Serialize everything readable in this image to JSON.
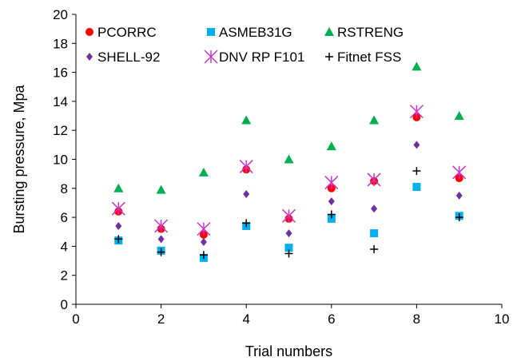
{
  "chart_data": {
    "type": "scatter",
    "xlabel": "Trial numbers",
    "ylabel": "Bursting pressure, Mpa",
    "xlim": [
      0,
      10
    ],
    "ylim": [
      0,
      20
    ],
    "xticks": [
      "0",
      "2",
      "4",
      "6",
      "8",
      "10"
    ],
    "yticks": [
      "0",
      "2",
      "4",
      "6",
      "8",
      "10",
      "12",
      "14",
      "16",
      "18",
      "20"
    ],
    "grid": false,
    "legend_position": "top (inside plot area)",
    "series": [
      {
        "name": "PCORRC",
        "marker": "circle",
        "color": "#ff0000",
        "x": [
          1,
          2,
          3,
          4,
          5,
          6,
          7,
          8,
          9
        ],
        "y": [
          6.4,
          5.2,
          4.8,
          9.3,
          5.9,
          8.0,
          8.5,
          12.9,
          8.7
        ]
      },
      {
        "name": "ASMEB31G",
        "marker": "square",
        "color": "#00b0f0",
        "x": [
          1,
          2,
          3,
          4,
          5,
          6,
          7,
          8,
          9
        ],
        "y": [
          4.4,
          3.7,
          3.2,
          5.4,
          3.9,
          5.9,
          4.9,
          8.1,
          6.1
        ]
      },
      {
        "name": "RSTRENG",
        "marker": "triangle",
        "color": "#00b050",
        "x": [
          1,
          2,
          3,
          4,
          5,
          6,
          7,
          8,
          9
        ],
        "y": [
          8.0,
          7.9,
          9.1,
          12.7,
          10.0,
          10.9,
          12.7,
          16.4,
          13.0
        ]
      },
      {
        "name": "SHELL-92",
        "marker": "diamond",
        "color": "#7030a0",
        "x": [
          1,
          2,
          3,
          4,
          5,
          6,
          7,
          8,
          9
        ],
        "y": [
          5.4,
          4.5,
          4.3,
          7.6,
          4.9,
          7.1,
          6.6,
          11.0,
          7.5
        ]
      },
      {
        "name": "DNV RP F101",
        "marker": "asterisk",
        "color": "#cc33cc",
        "x": [
          1,
          2,
          3,
          4,
          5,
          6,
          7,
          8,
          9
        ],
        "y": [
          6.6,
          5.4,
          5.2,
          9.5,
          6.1,
          8.4,
          8.6,
          13.3,
          9.1
        ]
      },
      {
        "name": "Fitnet FSS",
        "marker": "plus",
        "color": "#000000",
        "x": [
          1,
          2,
          3,
          4,
          5,
          6,
          7,
          8,
          9
        ],
        "y": [
          4.5,
          3.6,
          3.4,
          5.6,
          3.5,
          6.2,
          3.8,
          9.2,
          6.0
        ]
      }
    ]
  }
}
